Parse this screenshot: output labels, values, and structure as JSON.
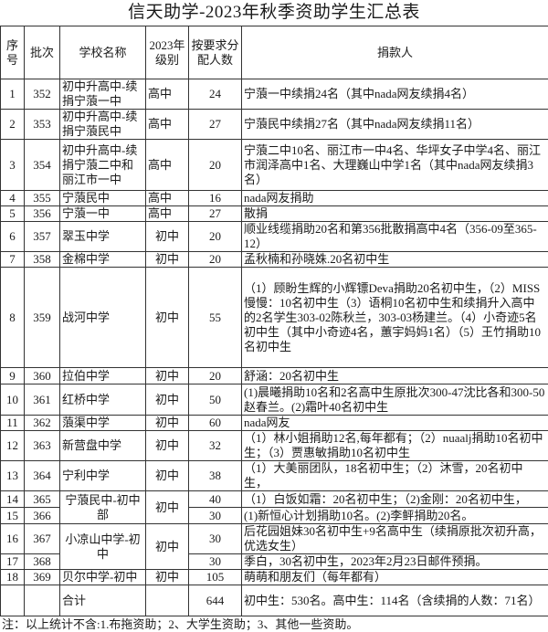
{
  "title": "信天助学-2023年秋季资助学生汇总表",
  "headers": {
    "seq": "序号",
    "batch": "批次",
    "school": "学校名称",
    "level": "2023年级别",
    "count": "按要求分配人数",
    "donor": "捐款人"
  },
  "rows": [
    {
      "seq": "1",
      "batch": "352",
      "school": "初中升高中-续捐宁蒗一中",
      "level": "高中",
      "count": "24",
      "donor": "宁蒗一中续捐24名（其中nada网友续捐4名）"
    },
    {
      "seq": "2",
      "batch": "353",
      "school": "初中升高中-续捐宁蒗民中",
      "level": "高中",
      "count": "27",
      "donor": "宁蒗民中续捐27名（其中nada网友续捐11名）"
    },
    {
      "seq": "3",
      "batch": "354",
      "school": "初中升高中-续捐宁蒗二中和丽江市一中",
      "level": "高中",
      "count": "20",
      "donor": "宁蒗二中10名、丽江市一中4名、华坪女子中学4名、丽江市润泽高中1名、大理巍山中学1名（其中nada网友续捐3名）"
    },
    {
      "seq": "4",
      "batch": "355",
      "school": "宁蒗民中",
      "level": "高中",
      "count": "16",
      "donor": "nada网友捐助"
    },
    {
      "seq": "5",
      "batch": "356",
      "school": "宁蒗一中",
      "level": "高中",
      "count": "27",
      "donor": "散捐"
    },
    {
      "seq": "6",
      "batch": "357",
      "school": "翠玉中学",
      "level": "初中",
      "count": "20",
      "donor": "顺业线缆捐助20名和第356批散捐高中4名（356-09至365-12）"
    },
    {
      "seq": "7",
      "batch": "358",
      "school": "金棉中学",
      "level": "初中",
      "count": "20",
      "donor": "孟秋楠和孙晓姝.20名初中生"
    },
    {
      "seq": "8",
      "batch": "359",
      "school": "战河中学",
      "level": "初中",
      "count": "55",
      "donor": "（1）顾盼生辉的小辉镖Deva捐助20名初中生，（2）MISS慢慢：10名初中生（3）语桐10名初中生和续捐升入高中的2名学生303-02陈秋兰，303-03杨建兰。（4）小奇迹5名初中生（其中小奇迹4名，蕙宇妈妈1名）（5）王竹捐助10名初中生"
    },
    {
      "seq": "9",
      "batch": "360",
      "school": "拉伯中学",
      "level": "初中",
      "count": "20",
      "donor": "舒涵：20名初中生"
    },
    {
      "seq": "10",
      "batch": "361",
      "school": "红桥中学",
      "level": "初中",
      "count": "50",
      "donor": "(1)晨曦捐助10名和2名高中生原批次300-47沈比各和300-50赵春兰。(2)霜叶40名初中生"
    },
    {
      "seq": "11",
      "batch": "362",
      "school": "蒗渠中学",
      "level": "初中",
      "count": "60",
      "donor": "nada网友"
    },
    {
      "seq": "12",
      "batch": "363",
      "school": "新营盘中学",
      "level": "初中",
      "count": "32",
      "donor": "（1）林小姐捐助12名,每年都有；（2）nuaalj捐助10名初中生；（3）贾惠敏捐助10名初中生"
    },
    {
      "seq": "13",
      "batch": "364",
      "school": "宁利中学",
      "level": "初中",
      "count": "38",
      "donor": "（1）大美丽团队，18名初中生；（2）沐雪，20名初中生，"
    },
    {
      "seq": "14",
      "batch": "365",
      "school": "宁蒗民中-初中部",
      "level": "初中",
      "count": "40",
      "donor": "（1）白饭如霜：20名初中生；（2)金刚：20名初中生，",
      "span": 2
    },
    {
      "seq": "15",
      "batch": "366",
      "count": "30",
      "donor": "(1)新恒心计划捐助10名。(2)李鲆捐助20名。",
      "merged": true
    },
    {
      "seq": "16",
      "batch": "367",
      "school": "小凉山中学-初中",
      "level": "初中",
      "count": "30",
      "donor": "后花园姐妹30名初中生+9名高中生（续捐原批次初升高，优选女生）",
      "span": 2
    },
    {
      "seq": "17",
      "batch": "368",
      "count": "30",
      "donor": "季白，30名初中生，2023年2月23日邮件预捐。",
      "merged": true
    },
    {
      "seq": "18",
      "batch": "369",
      "school": "贝尔中学-初中",
      "level": "初中",
      "count": "105",
      "donor": "萌萌和朋友们（每年都有）"
    }
  ],
  "total": {
    "label": "合计",
    "count": "644",
    "donor": "初中生：530名。高中生：114名（含续捐的人数：71名）"
  },
  "note": "注：以上统计不含:1.布拖资助；2、大学生资助；3、其他一些资助。"
}
